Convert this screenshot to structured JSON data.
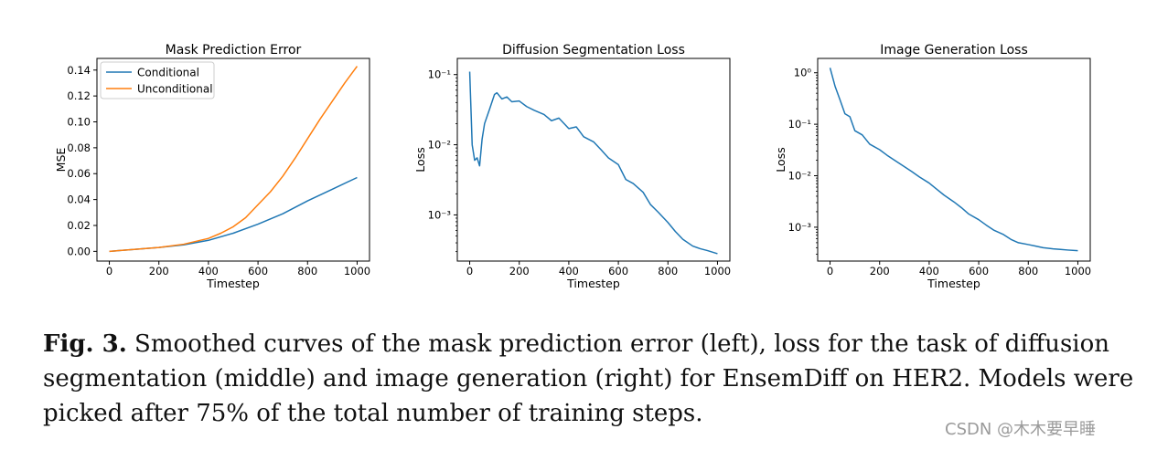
{
  "figure": {
    "caption_label": "Fig. 3.",
    "caption_text": "Smoothed curves of the mask prediction error (left), loss for the task of diffusion segmentation (middle) and image generation (right) for EnsemDiff on HER2. Models were picked after 75% of the total number of training steps.",
    "watermark": "CSDN @木木要早睡"
  },
  "colors": {
    "blue": "#1f77b4",
    "orange": "#ff7f0e"
  },
  "chart_data": [
    {
      "type": "line",
      "title": "Mask Prediction Error",
      "xlabel": "Timestep",
      "ylabel": "MSE",
      "xlim": [
        -50,
        1050
      ],
      "ylim": [
        -0.0075,
        0.149
      ],
      "xticks": [
        0,
        200,
        400,
        600,
        800,
        1000
      ],
      "xtick_labels": [
        "0",
        "200",
        "400",
        "600",
        "800",
        "1000"
      ],
      "yscale": "linear",
      "yticks": [
        0.0,
        0.02,
        0.04,
        0.06,
        0.08,
        0.1,
        0.12,
        0.14
      ],
      "ytick_labels": [
        "0.00",
        "0.02",
        "0.04",
        "0.06",
        "0.08",
        "0.10",
        "0.12",
        "0.14"
      ],
      "legend": "top-left",
      "series": [
        {
          "name": "Conditional",
          "color": "#1f77b4",
          "x": [
            0,
            100,
            200,
            300,
            400,
            500,
            600,
            700,
            800,
            900,
            1000
          ],
          "y": [
            0.0,
            0.0015,
            0.003,
            0.005,
            0.0085,
            0.014,
            0.021,
            0.029,
            0.039,
            0.048,
            0.057
          ]
        },
        {
          "name": "Unconditional",
          "color": "#ff7f0e",
          "x": [
            0,
            100,
            200,
            300,
            400,
            450,
            500,
            550,
            600,
            650,
            700,
            750,
            800,
            850,
            900,
            950,
            1000
          ],
          "y": [
            0.0,
            0.0015,
            0.003,
            0.0055,
            0.01,
            0.014,
            0.019,
            0.026,
            0.036,
            0.046,
            0.058,
            0.072,
            0.087,
            0.102,
            0.116,
            0.13,
            0.143
          ]
        }
      ]
    },
    {
      "type": "line",
      "title": "Diffusion Segmentation Loss",
      "xlabel": "Timestep",
      "ylabel": "Loss",
      "xlim": [
        -50,
        1050
      ],
      "ylim": [
        0.00022,
        0.17
      ],
      "yscale": "log",
      "xticks": [
        0,
        200,
        400,
        600,
        800,
        1000
      ],
      "xtick_labels": [
        "0",
        "200",
        "400",
        "600",
        "800",
        "1000"
      ],
      "yticks": [
        0.001,
        0.01,
        0.1
      ],
      "ytick_labels": [
        "10⁻³",
        "10⁻²",
        "10⁻¹"
      ],
      "series": [
        {
          "name": "Loss",
          "color": "#1f77b4",
          "x": [
            0,
            10,
            20,
            30,
            40,
            50,
            60,
            80,
            100,
            110,
            130,
            150,
            170,
            200,
            230,
            260,
            300,
            330,
            360,
            400,
            430,
            460,
            500,
            530,
            560,
            600,
            630,
            660,
            700,
            730,
            760,
            800,
            830,
            860,
            900,
            930,
            960,
            1000
          ],
          "y": [
            0.11,
            0.01,
            0.006,
            0.0065,
            0.005,
            0.012,
            0.02,
            0.032,
            0.052,
            0.055,
            0.045,
            0.048,
            0.041,
            0.042,
            0.035,
            0.031,
            0.027,
            0.022,
            0.024,
            0.017,
            0.018,
            0.013,
            0.011,
            0.0085,
            0.0065,
            0.0052,
            0.0032,
            0.0028,
            0.0021,
            0.0014,
            0.0011,
            0.00078,
            0.00058,
            0.00045,
            0.00036,
            0.00033,
            0.00031,
            0.00028
          ]
        }
      ]
    },
    {
      "type": "line",
      "title": "Image Generation Loss",
      "xlabel": "Timestep",
      "ylabel": "Loss",
      "xlim": [
        -50,
        1050
      ],
      "ylim": [
        0.00022,
        1.9
      ],
      "yscale": "log",
      "xticks": [
        0,
        200,
        400,
        600,
        800,
        1000
      ],
      "xtick_labels": [
        "0",
        "200",
        "400",
        "600",
        "800",
        "1000"
      ],
      "yticks": [
        0.001,
        0.01,
        0.1,
        1
      ],
      "ytick_labels": [
        "10⁻³",
        "10⁻²",
        "10⁻¹",
        "10⁰"
      ],
      "series": [
        {
          "name": "Loss",
          "color": "#1f77b4",
          "x": [
            0,
            20,
            40,
            60,
            80,
            100,
            130,
            160,
            200,
            230,
            260,
            300,
            330,
            360,
            400,
            430,
            460,
            500,
            530,
            560,
            600,
            630,
            660,
            700,
            730,
            760,
            800,
            830,
            860,
            900,
            930,
            960,
            1000
          ],
          "y": [
            1.25,
            0.55,
            0.3,
            0.16,
            0.14,
            0.075,
            0.062,
            0.041,
            0.032,
            0.025,
            0.02,
            0.015,
            0.012,
            0.0095,
            0.0072,
            0.0055,
            0.0042,
            0.0031,
            0.0024,
            0.0018,
            0.0014,
            0.0011,
            0.00088,
            0.00072,
            0.00058,
            0.0005,
            0.00046,
            0.00043,
            0.0004,
            0.00038,
            0.00037,
            0.00036,
            0.00035
          ]
        }
      ]
    }
  ]
}
